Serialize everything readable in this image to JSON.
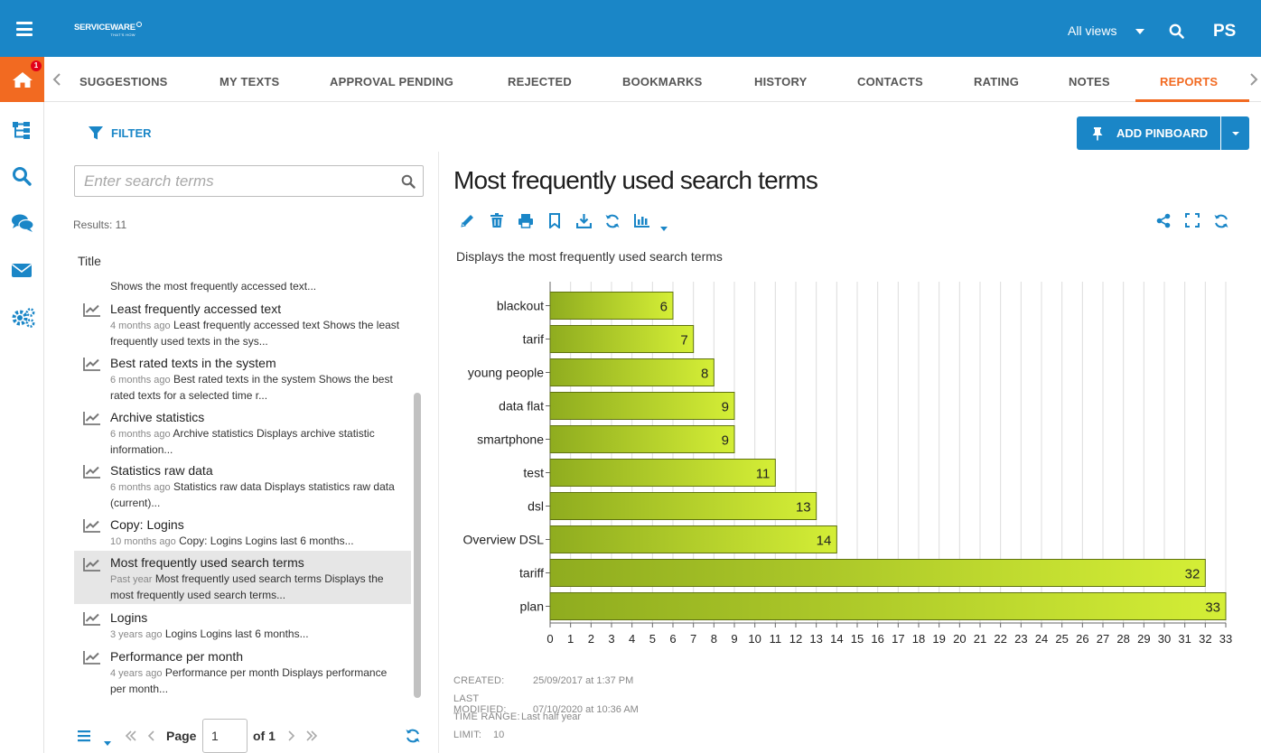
{
  "header": {
    "logo_brand": "SERVICEWARE",
    "logo_tag": "THAT'S HOW",
    "views_label": "All views",
    "user_initials": "PS"
  },
  "rail": {
    "home_badge": "1"
  },
  "tabs": [
    {
      "label": "SUGGESTIONS"
    },
    {
      "label": "MY TEXTS"
    },
    {
      "label": "APPROVAL PENDING"
    },
    {
      "label": "REJECTED"
    },
    {
      "label": "BOOKMARKS"
    },
    {
      "label": "HISTORY"
    },
    {
      "label": "CONTACTS"
    },
    {
      "label": "RATING"
    },
    {
      "label": "NOTES"
    },
    {
      "label": "REPORTS",
      "active": true
    }
  ],
  "filter_label": "FILTER",
  "pinboard_label": "ADD PINBOARD",
  "search": {
    "placeholder": "Enter search terms",
    "value": ""
  },
  "results_label": "Results: 11",
  "list_column_title": "Title",
  "list_items": [
    {
      "title": "",
      "age": "",
      "desc": "Shows the most frequently accessed text..."
    },
    {
      "title": "Least frequently accessed text",
      "age": "4 months ago",
      "desc": "Least frequently accessed text Shows the least frequently used texts in the sys..."
    },
    {
      "title": "Best rated texts in the system",
      "age": "6 months ago",
      "desc": "Best rated texts in the system Shows the best rated texts for a selected time r..."
    },
    {
      "title": "Archive statistics",
      "age": "6 months ago",
      "desc": "Archive statistics Displays archive statistic information..."
    },
    {
      "title": "Statistics raw data",
      "age": "6 months ago",
      "desc": "Statistics raw data Displays statistics raw data (current)..."
    },
    {
      "title": "Copy: Logins",
      "age": "10 months ago",
      "desc": "Copy: Logins Logins last 6 months..."
    },
    {
      "title": "Most frequently used search terms",
      "age": "Past year",
      "desc": "Most frequently used search terms Displays the most frequently used search terms..."
    },
    {
      "title": "Logins",
      "age": "3 years ago",
      "desc": "Logins Logins last 6 months..."
    },
    {
      "title": "Performance per month",
      "age": "4 years ago",
      "desc": "Performance per month Displays performance per month..."
    }
  ],
  "pager": {
    "page_label": "Page",
    "page_value": "1",
    "of_label": "of 1"
  },
  "report": {
    "title": "Most frequently used search terms",
    "description": "Displays the most frequently used search terms",
    "meta": {
      "created_label": "CREATED:",
      "created_value": "25/09/2017 at 1:37 PM",
      "modified_label": "LAST MODIFIED:",
      "modified_value": "07/10/2020 at 10:36 AM",
      "range_label": "TIME RANGE:",
      "range_value": "Last half year",
      "limit_label": "LIMIT:",
      "limit_value": "10"
    }
  },
  "colors": {
    "header_blue": "#1a86c7",
    "accent_orange": "#f26a21",
    "bar_dark": "#8fac1f",
    "bar_light": "#d4ee36"
  },
  "chart_data": {
    "type": "bar",
    "orientation": "horizontal",
    "categories": [
      "blackout",
      "tarif",
      "young people",
      "data flat",
      "smartphone",
      "test",
      "dsl",
      "Overview DSL",
      "tariff",
      "plan"
    ],
    "values": [
      6,
      7,
      8,
      9,
      9,
      11,
      13,
      14,
      32,
      33
    ],
    "xlim": [
      0,
      33
    ],
    "xticks": [
      0,
      1,
      2,
      3,
      4,
      5,
      6,
      7,
      8,
      9,
      10,
      11,
      12,
      13,
      14,
      15,
      16,
      17,
      18,
      19,
      20,
      21,
      22,
      23,
      24,
      25,
      26,
      27,
      28,
      29,
      30,
      31,
      32,
      33
    ],
    "grid": true,
    "data_labels": true
  }
}
